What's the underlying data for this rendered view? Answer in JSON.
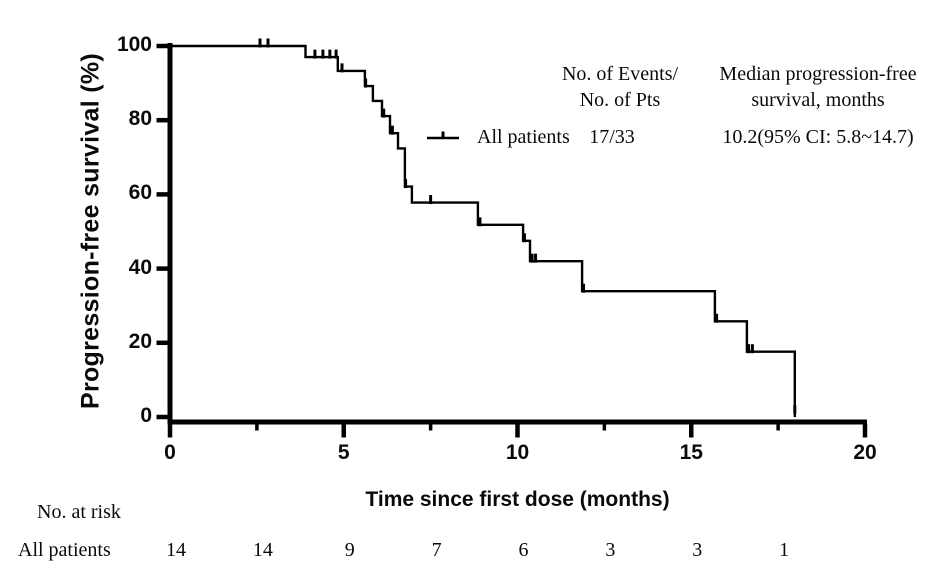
{
  "figure": {
    "background": "#ffffff",
    "ink_color": "#000000"
  },
  "chart_data": {
    "type": "line",
    "subtype": "kaplan_meier_step_curve",
    "title": "",
    "xlabel": "Time since first dose (months)",
    "ylabel": "Progression-free survival (%)",
    "xlim": [
      0,
      20
    ],
    "ylim": [
      0,
      100
    ],
    "x_major_ticks": [
      0,
      5,
      10,
      15,
      20
    ],
    "x_minor_ticks": [
      2.5,
      7.5,
      12.5,
      17.5
    ],
    "y_ticks": [
      0,
      20,
      40,
      60,
      80,
      100
    ],
    "grid": false,
    "legend_position": "top-right-inside",
    "legend_headers": {
      "events_line1": "No. of Events/",
      "events_line2": "No. of Pts",
      "median_line1": "Median progression-free",
      "median_line2": "survival, months"
    },
    "series": [
      {
        "name": "All patients",
        "events_over_pts": "17/33",
        "median_pfs": "10.2(95% CI: 5.8~14.7)",
        "color": "#000000",
        "step_points": [
          [
            0,
            100
          ],
          [
            3.9,
            97
          ],
          [
            4.83,
            93.3
          ],
          [
            5.61,
            89.2
          ],
          [
            5.84,
            85.2
          ],
          [
            6.1,
            81.1
          ],
          [
            6.33,
            76.5
          ],
          [
            6.56,
            72.4
          ],
          [
            6.76,
            62.1
          ],
          [
            6.96,
            57.8
          ],
          [
            8.86,
            51.8
          ],
          [
            10.16,
            47.5
          ],
          [
            10.36,
            42
          ],
          [
            11.86,
            33.9
          ],
          [
            15.68,
            25.8
          ],
          [
            16.6,
            17.6
          ],
          [
            17.98,
            0
          ]
        ],
        "censor_marks": [
          [
            2.59,
            100
          ],
          [
            2.82,
            100
          ],
          [
            4.17,
            97
          ],
          [
            4.4,
            97
          ],
          [
            4.6,
            97
          ],
          [
            4.78,
            97
          ],
          [
            4.95,
            93.3
          ],
          [
            5.63,
            89.2
          ],
          [
            6.15,
            81.1
          ],
          [
            6.4,
            76.5
          ],
          [
            6.78,
            62.1
          ],
          [
            7.5,
            57.8
          ],
          [
            8.92,
            51.8
          ],
          [
            10.2,
            47.5
          ],
          [
            10.42,
            42
          ],
          [
            10.52,
            42
          ],
          [
            11.9,
            33.9
          ],
          [
            15.73,
            25.8
          ],
          [
            16.65,
            17.6
          ],
          [
            16.76,
            17.6
          ],
          [
            17.98,
            1.2
          ]
        ]
      }
    ],
    "at_risk_table": {
      "title": "No. at risk",
      "time_points": [
        0,
        2.5,
        5,
        7.5,
        10,
        12.5,
        15,
        17.5
      ],
      "rows": [
        {
          "label": "All patients",
          "counts": [
            "14",
            "14",
            "9",
            "7",
            "6",
            "3",
            "3",
            "1"
          ]
        }
      ]
    }
  }
}
